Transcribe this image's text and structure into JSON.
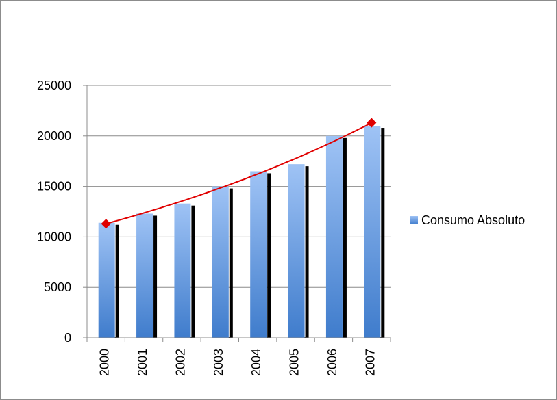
{
  "chart_data": {
    "type": "bar",
    "title": "",
    "xlabel": "",
    "ylabel": "",
    "categories": [
      "2000",
      "2001",
      "2002",
      "2003",
      "2004",
      "2005",
      "2006",
      "2007"
    ],
    "series": [
      {
        "name": "Consumo Absoluto",
        "values": [
          11400,
          12300,
          13300,
          15000,
          16500,
          17200,
          20000,
          21000
        ]
      }
    ],
    "trendline": {
      "type": "exponential",
      "start": 11300,
      "end": 21300,
      "color": "#e00000",
      "marker": "diamond"
    },
    "ylim": [
      0,
      25000
    ],
    "yticks": [
      0,
      5000,
      10000,
      15000,
      20000,
      25000
    ],
    "grid": true,
    "legend": "right",
    "colors": {
      "bar_top": "#9fc3f5",
      "bar_bottom": "#3f7ccc",
      "bar_shadow": "#000000",
      "trend": "#e00000",
      "grid": "#8c8c8c"
    }
  }
}
